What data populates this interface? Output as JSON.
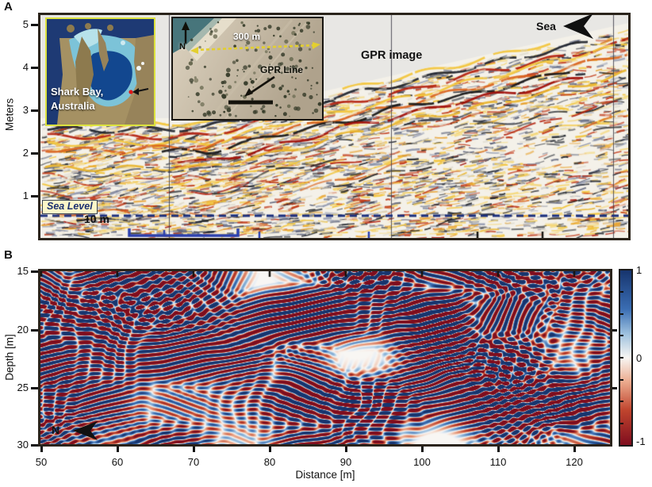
{
  "figure": {
    "panel_a": {
      "label": "A",
      "ylabel": "Meters",
      "yticks": [
        "5",
        "4",
        "3",
        "2",
        "1"
      ],
      "gpr_image_label": "GPR image",
      "sea_label": "Sea",
      "sea_level_label": "Sea Level",
      "scale_label": "10 m",
      "map_inset": {
        "title_line1": "Shark Bay,",
        "title_line2": "Australia"
      },
      "aerial_inset": {
        "scale_label": "300 m",
        "gpr_line_label": "GPR Line",
        "north_label": "N"
      }
    },
    "panel_b": {
      "label": "B",
      "ylabel": "Depth [m]",
      "xlabel": "Distance [m]",
      "yticks": [
        "15",
        "20",
        "25",
        "30"
      ],
      "xticks": [
        "50",
        "60",
        "70",
        "80",
        "90",
        "100",
        "110",
        "120"
      ],
      "north_label": "N",
      "colorbar_ticks": [
        "1",
        "0",
        "-1"
      ]
    }
  },
  "colors": {
    "panel_border": "#2b241c",
    "above_surface_gray": "#e8e7e4",
    "gpr_background": "#f4f1e9",
    "sea_level_dash": "#1b2f7d",
    "sea_level_box_bg": "#fbf6c8",
    "bracket_blue": "#2a3fae",
    "fiducial_line": "#3c3c48",
    "gpr_palette": [
      "#f2c53c",
      "#20242c",
      "#b42310",
      "#f2c53c",
      "#d9641e",
      "#181818",
      "#a00d06",
      "#e8b52e",
      "#3d4356",
      "#c03615"
    ],
    "speckle_palette": [
      "#f2c53c",
      "#e8a22e",
      "#8b93ab",
      "#c03615",
      "#20242c",
      "#5a6078",
      "#f5d87a"
    ],
    "rwb_stops": [
      [
        -1,
        "#7f0d1e"
      ],
      [
        -0.6,
        "#c0452e"
      ],
      [
        -0.25,
        "#eba98c"
      ],
      [
        -0.06,
        "#f7e9e0"
      ],
      [
        0,
        "#f8f6f3"
      ],
      [
        0.06,
        "#e8eef5"
      ],
      [
        0.25,
        "#9cc0de"
      ],
      [
        0.6,
        "#3a6db3"
      ],
      [
        1,
        "#17356e"
      ]
    ]
  },
  "chart_data": [
    {
      "type": "heatmap",
      "panel": "A",
      "title": "GPR image",
      "ylabel": "Meters",
      "yticks": [
        5,
        4,
        3,
        2,
        1
      ],
      "ylim": [
        0,
        5.3
      ],
      "horizontal_scale_bar": "10 m",
      "annotations": [
        "Sea (arrowhead pointing left at top right)",
        "Sea Level (navy dashed horizontal line at ~0.6 m)",
        "10 m",
        "GPR image"
      ],
      "insets": [
        "Shark Bay, Australia satellite map with arrow marking site",
        "Aerial photo with 300 m scale bar, GPR Line marker and north arrow"
      ],
      "palette_description": "yellow-orange-red-black dipping reflectors on cream background rising toward the sea (right); light gray above ground surface",
      "legend_position": "none",
      "grid": false
    },
    {
      "type": "heatmap",
      "panel": "B",
      "xlabel": "Distance [m]",
      "ylabel": "Depth [m]",
      "xlim": [
        50,
        125
      ],
      "ylim": [
        15,
        30
      ],
      "xticks": [
        50,
        60,
        70,
        80,
        90,
        100,
        110,
        120
      ],
      "yticks": [
        15,
        20,
        25,
        30
      ],
      "colorbar": {
        "min": -1,
        "max": 1,
        "ticks": [
          1,
          0,
          -1
        ],
        "colormap": "blue (+1) - white (0) - red (-1)"
      },
      "annotations": [
        "N (arrowhead pointing left at bottom left)"
      ],
      "grid": false
    }
  ]
}
